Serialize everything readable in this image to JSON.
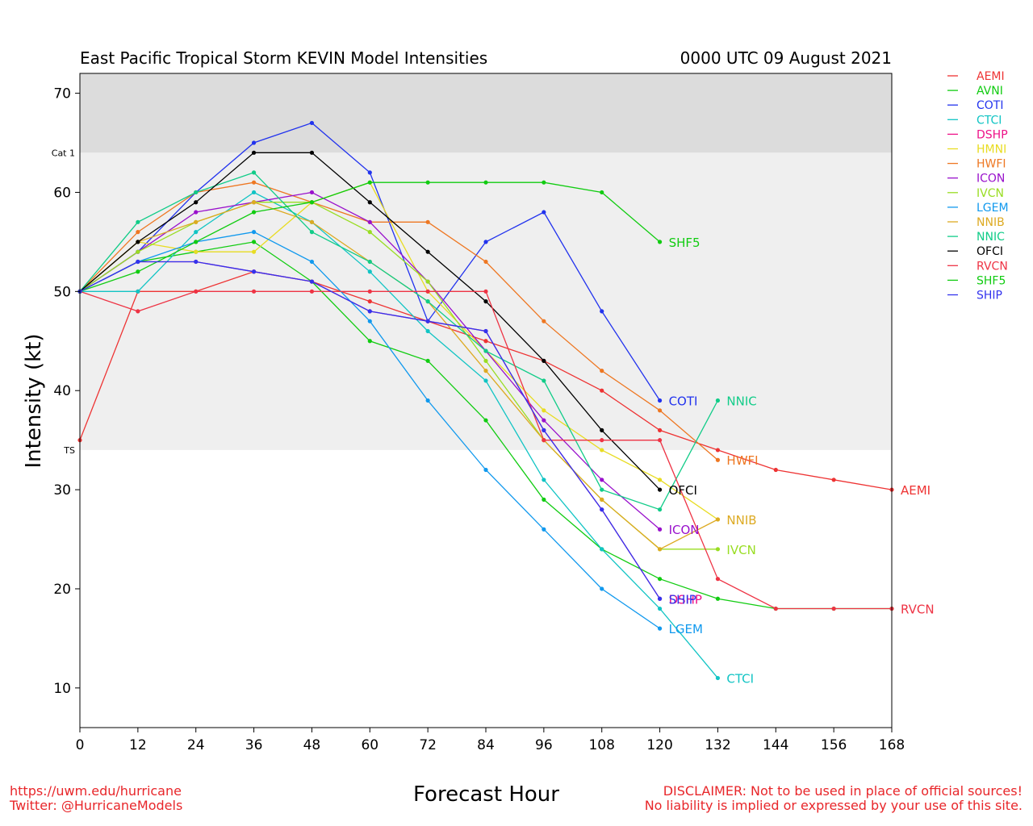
{
  "chart_data": {
    "type": "line",
    "title": "East Pacific Tropical Storm KEVIN Model Intensities",
    "subtitle": "0000 UTC 09 August 2021",
    "xlabel": "Forecast Hour",
    "ylabel": "Intensity (kt)",
    "xlim": [
      0,
      168
    ],
    "ylim": [
      6,
      72
    ],
    "xticks": [
      "0",
      "12",
      "24",
      "36",
      "48",
      "60",
      "72",
      "84",
      "96",
      "108",
      "120",
      "132",
      "144",
      "156",
      "168"
    ],
    "yticks": [
      10,
      20,
      30,
      40,
      50,
      60,
      70
    ],
    "bands": [
      {
        "label": "TS",
        "from": 34,
        "to": 64,
        "color": "#efefef"
      },
      {
        "label": "Cat 1",
        "from": 64,
        "to": 72,
        "color": "#dcdcdc"
      }
    ],
    "grid": false,
    "legend_position": "right",
    "series": [
      {
        "name": "AEMI",
        "color": "#ee3333",
        "end_label": true,
        "points": [
          [
            0,
            35
          ],
          [
            12,
            50
          ],
          [
            24,
            50
          ],
          [
            36,
            52
          ],
          [
            48,
            51
          ],
          [
            60,
            49
          ],
          [
            72,
            47
          ],
          [
            84,
            45
          ],
          [
            96,
            43
          ],
          [
            108,
            40
          ],
          [
            120,
            36
          ],
          [
            132,
            34
          ],
          [
            144,
            32
          ],
          [
            156,
            31
          ],
          [
            168,
            30
          ]
        ]
      },
      {
        "name": "AVNI",
        "color": "#11cc11",
        "end_label": false,
        "points": [
          [
            0,
            50
          ],
          [
            12,
            53
          ],
          [
            24,
            54
          ],
          [
            36,
            55
          ],
          [
            48,
            51
          ],
          [
            60,
            45
          ],
          [
            72,
            43
          ],
          [
            84,
            37
          ],
          [
            96,
            29
          ],
          [
            108,
            24
          ],
          [
            120,
            21
          ],
          [
            132,
            19
          ],
          [
            144,
            18
          ],
          [
            156,
            18
          ],
          [
            168,
            18
          ]
        ]
      },
      {
        "name": "COTI",
        "color": "#2233ee",
        "end_label": true,
        "points": [
          [
            0,
            50
          ],
          [
            12,
            54
          ],
          [
            24,
            60
          ],
          [
            36,
            65
          ],
          [
            48,
            67
          ],
          [
            60,
            62
          ],
          [
            72,
            47
          ],
          [
            84,
            55
          ],
          [
            96,
            58
          ],
          [
            108,
            48
          ],
          [
            120,
            39
          ]
        ]
      },
      {
        "name": "CTCI",
        "color": "#11c4c4",
        "end_label": true,
        "points": [
          [
            0,
            50
          ],
          [
            12,
            50
          ],
          [
            24,
            56
          ],
          [
            36,
            60
          ],
          [
            48,
            57
          ],
          [
            60,
            52
          ],
          [
            72,
            46
          ],
          [
            84,
            41
          ],
          [
            96,
            31
          ],
          [
            108,
            24
          ],
          [
            120,
            18
          ],
          [
            132,
            11
          ]
        ]
      },
      {
        "name": "DSHP",
        "color": "#ee1188",
        "end_label": true,
        "points": [
          [
            0,
            50
          ],
          [
            12,
            53
          ],
          [
            24,
            53
          ],
          [
            36,
            52
          ],
          [
            48,
            51
          ],
          [
            60,
            48
          ],
          [
            72,
            47
          ],
          [
            84,
            46
          ],
          [
            96,
            36
          ],
          [
            108,
            28
          ],
          [
            120,
            19
          ]
        ]
      },
      {
        "name": "HMNI",
        "color": "#e8dc22",
        "end_label": false,
        "points": [
          [
            0,
            50
          ],
          [
            12,
            55
          ],
          [
            24,
            54
          ],
          [
            36,
            54
          ],
          [
            48,
            59
          ],
          [
            60,
            61
          ],
          [
            72,
            50
          ],
          [
            84,
            44
          ],
          [
            96,
            38
          ],
          [
            108,
            34
          ],
          [
            120,
            31
          ],
          [
            132,
            27
          ]
        ]
      },
      {
        "name": "HWFI",
        "color": "#ee7722",
        "end_label": true,
        "points": [
          [
            0,
            50
          ],
          [
            12,
            56
          ],
          [
            24,
            60
          ],
          [
            36,
            61
          ],
          [
            48,
            59
          ],
          [
            60,
            57
          ],
          [
            72,
            57
          ],
          [
            84,
            53
          ],
          [
            96,
            47
          ],
          [
            108,
            42
          ],
          [
            120,
            38
          ],
          [
            132,
            33
          ]
        ]
      },
      {
        "name": "ICON",
        "color": "#9911cc",
        "end_label": true,
        "points": [
          [
            0,
            50
          ],
          [
            12,
            54
          ],
          [
            24,
            58
          ],
          [
            36,
            59
          ],
          [
            48,
            60
          ],
          [
            60,
            57
          ],
          [
            72,
            51
          ],
          [
            84,
            44
          ],
          [
            96,
            37
          ],
          [
            108,
            31
          ],
          [
            120,
            26
          ]
        ]
      },
      {
        "name": "IVCN",
        "color": "#99dd22",
        "end_label": true,
        "points": [
          [
            0,
            50
          ],
          [
            12,
            54
          ],
          [
            24,
            57
          ],
          [
            36,
            59
          ],
          [
            48,
            59
          ],
          [
            60,
            56
          ],
          [
            72,
            51
          ],
          [
            84,
            43
          ],
          [
            96,
            35
          ],
          [
            108,
            29
          ],
          [
            120,
            24
          ],
          [
            132,
            24
          ]
        ]
      },
      {
        "name": "LGEM",
        "color": "#1199ee",
        "end_label": true,
        "points": [
          [
            0,
            50
          ],
          [
            12,
            53
          ],
          [
            24,
            55
          ],
          [
            36,
            56
          ],
          [
            48,
            53
          ],
          [
            60,
            47
          ],
          [
            72,
            39
          ],
          [
            84,
            32
          ],
          [
            96,
            26
          ],
          [
            108,
            20
          ],
          [
            120,
            16
          ]
        ]
      },
      {
        "name": "NNIB",
        "color": "#ddaa22",
        "end_label": true,
        "points": [
          [
            0,
            50
          ],
          [
            12,
            55
          ],
          [
            24,
            57
          ],
          [
            36,
            59
          ],
          [
            48,
            57
          ],
          [
            60,
            53
          ],
          [
            72,
            49
          ],
          [
            84,
            42
          ],
          [
            96,
            35
          ],
          [
            108,
            29
          ],
          [
            120,
            24
          ],
          [
            132,
            27
          ]
        ]
      },
      {
        "name": "NNIC",
        "color": "#11cc88",
        "end_label": true,
        "points": [
          [
            0,
            50
          ],
          [
            12,
            57
          ],
          [
            24,
            60
          ],
          [
            36,
            62
          ],
          [
            48,
            56
          ],
          [
            60,
            53
          ],
          [
            72,
            49
          ],
          [
            84,
            44
          ],
          [
            96,
            41
          ],
          [
            108,
            30
          ],
          [
            120,
            28
          ],
          [
            132,
            39
          ]
        ]
      },
      {
        "name": "OFCI",
        "color": "#000000",
        "end_label": true,
        "points": [
          [
            0,
            50
          ],
          [
            12,
            55
          ],
          [
            24,
            59
          ],
          [
            36,
            64
          ],
          [
            48,
            64
          ],
          [
            60,
            59
          ],
          [
            72,
            54
          ],
          [
            84,
            49
          ],
          [
            96,
            43
          ],
          [
            108,
            36
          ],
          [
            120,
            30
          ]
        ]
      },
      {
        "name": "RVCN",
        "color": "#ee3344",
        "end_label": true,
        "points": [
          [
            0,
            50
          ],
          [
            12,
            48
          ],
          [
            24,
            50
          ],
          [
            36,
            50
          ],
          [
            48,
            50
          ],
          [
            60,
            50
          ],
          [
            72,
            50
          ],
          [
            84,
            50
          ],
          [
            96,
            35
          ],
          [
            108,
            35
          ],
          [
            120,
            35
          ],
          [
            132,
            21
          ],
          [
            144,
            18
          ],
          [
            156,
            18
          ],
          [
            168,
            18
          ]
        ]
      },
      {
        "name": "SHF5",
        "color": "#11cc11",
        "end_label": true,
        "points": [
          [
            0,
            50
          ],
          [
            12,
            52
          ],
          [
            24,
            55
          ],
          [
            36,
            58
          ],
          [
            48,
            59
          ],
          [
            60,
            61
          ],
          [
            72,
            61
          ],
          [
            84,
            61
          ],
          [
            96,
            61
          ],
          [
            108,
            60
          ],
          [
            120,
            55
          ]
        ]
      },
      {
        "name": "SHIP",
        "color": "#3333ee",
        "end_label": true,
        "points": [
          [
            0,
            50
          ],
          [
            12,
            53
          ],
          [
            24,
            53
          ],
          [
            36,
            52
          ],
          [
            48,
            51
          ],
          [
            60,
            48
          ],
          [
            72,
            47
          ],
          [
            84,
            46
          ],
          [
            96,
            36
          ],
          [
            108,
            28
          ],
          [
            120,
            19
          ]
        ]
      }
    ]
  },
  "footer": {
    "left_line1": "https://uwm.edu/hurricane",
    "left_line2": "Twitter: @HurricaneModels",
    "right_line1": "DISCLAIMER: Not to be used in place of official sources!",
    "right_line2": "No liability is implied or expressed by your use of this site."
  }
}
